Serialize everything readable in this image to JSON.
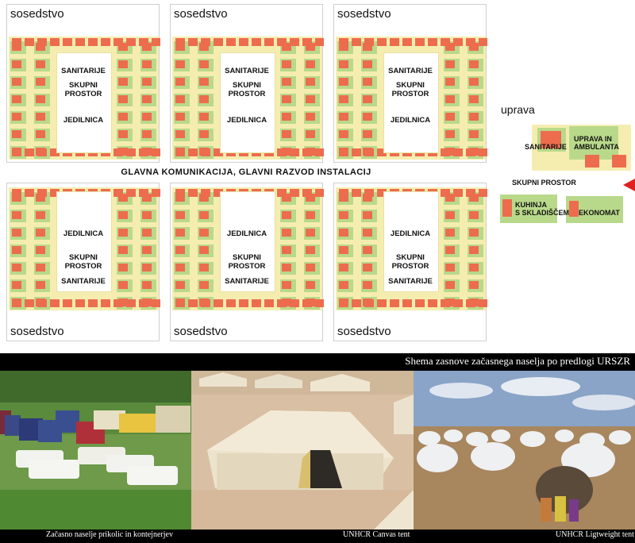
{
  "diagram": {
    "neighbourhood_label": "sosedstvo",
    "sanitary_label": "SANITARIJE",
    "common_label_line1": "SKUPNI",
    "common_label_line2": "PROSTOR",
    "dining_label": "JEDILNICA",
    "main_road_label": "GLAVNA KOMUNIKACIJA, GLAVNI RAZVOD INSTALACIJ",
    "admin": {
      "title": "uprava",
      "sanitary": "SANITARIJE",
      "office_line1": "UPRAVA IN",
      "office_line2": "AMBULANTA",
      "common": "SKUPNI PROSTOR",
      "kitchen_line1": "KUHINJA",
      "kitchen_line2": "S SKLADIŠČEM",
      "economat": "EKONOMAT"
    }
  },
  "caption_main": "Shema zasnove začasnega naselja po predlogi URSZR",
  "photos": [
    {
      "caption": "Začasno naselje prikolic in kontejnerjev"
    },
    {
      "caption": "UNHCR Canvas tent"
    },
    {
      "caption": "UNHCR Ligtweight tent"
    }
  ],
  "colors": {
    "building": "#ed6c4e",
    "green": "#b9d98a",
    "yellow": "#f5edb0"
  }
}
